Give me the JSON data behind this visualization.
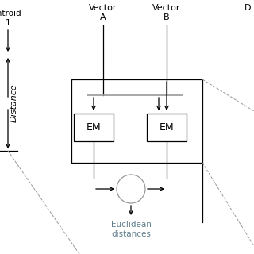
{
  "bg_color": "#ffffff",
  "text_color": "#000000",
  "gray_color": "#999999",
  "dark_gray": "#555555",
  "blue_gray_text": "#607d8b",
  "labels": {
    "centroid": "Centroid",
    "centroid_num": "1",
    "vector_a": "Vector\nA",
    "vector_b": "Vector\nB",
    "distance_label": "Distance",
    "em1": "EM",
    "em2": "EM",
    "euclidean": "Euclidean\ndistances",
    "d_label": "D"
  },
  "figsize": [
    3.2,
    3.2
  ],
  "dpi": 100
}
